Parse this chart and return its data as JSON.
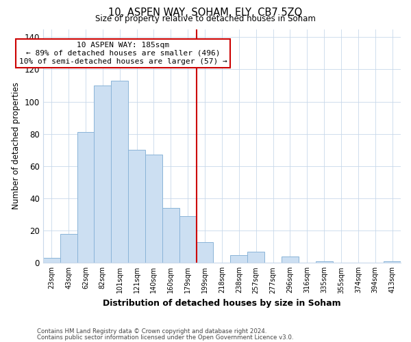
{
  "title": "10, ASPEN WAY, SOHAM, ELY, CB7 5ZQ",
  "subtitle": "Size of property relative to detached houses in Soham",
  "xlabel": "Distribution of detached houses by size in Soham",
  "ylabel": "Number of detached properties",
  "bar_labels": [
    "23sqm",
    "43sqm",
    "62sqm",
    "82sqm",
    "101sqm",
    "121sqm",
    "140sqm",
    "160sqm",
    "179sqm",
    "199sqm",
    "218sqm",
    "238sqm",
    "257sqm",
    "277sqm",
    "296sqm",
    "316sqm",
    "335sqm",
    "355sqm",
    "374sqm",
    "394sqm",
    "413sqm"
  ],
  "bar_values": [
    3,
    18,
    81,
    110,
    113,
    70,
    67,
    34,
    29,
    13,
    0,
    5,
    7,
    0,
    4,
    0,
    1,
    0,
    0,
    0,
    1
  ],
  "bar_color": "#ccdff2",
  "bar_edge_color": "#8ab4d8",
  "vline_index": 8.5,
  "annotation_title": "10 ASPEN WAY: 185sqm",
  "annotation_line1": "← 89% of detached houses are smaller (496)",
  "annotation_line2": "10% of semi-detached houses are larger (57) →",
  "annotation_box_color": "#ffffff",
  "annotation_box_edge_color": "#cc0000",
  "vline_color": "#cc0000",
  "ylim": [
    0,
    145
  ],
  "yticks": [
    0,
    20,
    40,
    60,
    80,
    100,
    120,
    140
  ],
  "footnote1": "Contains HM Land Registry data © Crown copyright and database right 2024.",
  "footnote2": "Contains public sector information licensed under the Open Government Licence v3.0.",
  "background_color": "#ffffff",
  "grid_color": "#c8d8ea"
}
